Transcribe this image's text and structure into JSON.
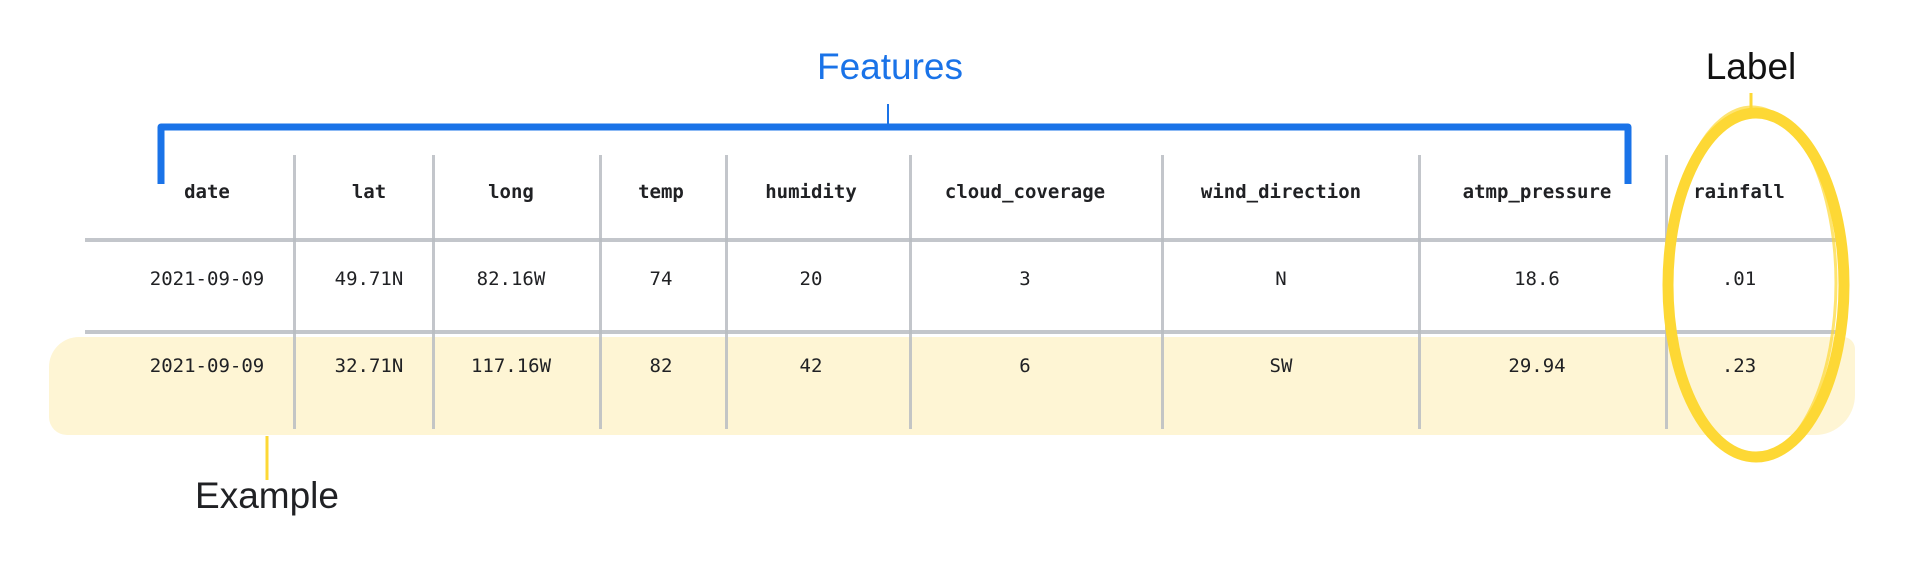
{
  "annotations": {
    "features": "Features",
    "label": "Label",
    "example": "Example"
  },
  "colors": {
    "features": "#1a73e8",
    "label": "#fdd835",
    "example_highlight": "#fef5d4",
    "grid": "#b9bcc2"
  },
  "table": {
    "headers": [
      "date",
      "lat",
      "long",
      "temp",
      "humidity",
      "cloud_coverage",
      "wind_direction",
      "atmp_pressure",
      "rainfall"
    ],
    "rows": [
      [
        "2021-09-09",
        "49.71N",
        "82.16W",
        "74",
        "20",
        "3",
        "N",
        "18.6",
        ".01"
      ],
      [
        "2021-09-09",
        "32.71N",
        "117.16W",
        "82",
        "42",
        "6",
        "SW",
        "29.94",
        ".23"
      ]
    ]
  }
}
